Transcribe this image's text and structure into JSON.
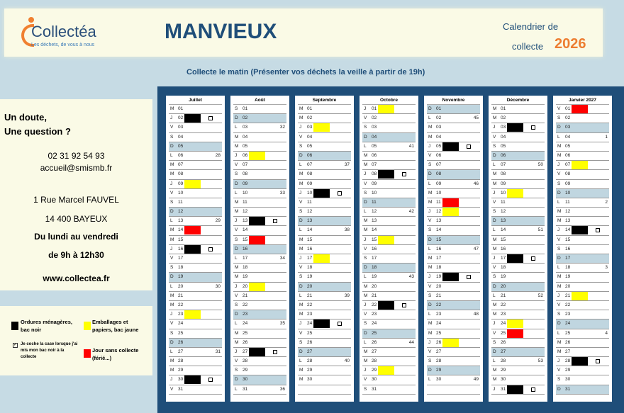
{
  "header": {
    "logo_name": "Collectéa",
    "logo_tagline": "Les déchets, de vous à nous",
    "town": "MANVIEUX",
    "calendar_line1": "Calendrier de",
    "calendar_line2": "collecte",
    "year": "2026",
    "subtitle": "Collecte le matin (Présenter vos déchets la veille à partir de 19h)"
  },
  "info": {
    "question1": "Un doute,",
    "question2": "Une question ?",
    "phone": "02 31 92 54 93",
    "email": "accueil@smismb.fr",
    "address1": "1 Rue Marcel FAUVEL",
    "address2": "14 400 BAYEUX",
    "days": "Du lundi au vendredi",
    "hours": "de 9h à 12h30",
    "website": "www.collectea.fr"
  },
  "legend": {
    "black": "Ordures ménagères, bac noir",
    "yellow": "Emballages et papiers, bac jaune",
    "check": "Je coche la case lorsque j'ai mis mon bac noir à la collecte",
    "red": "Jour sans collecte (férié...)"
  },
  "colors": {
    "black": "#000000",
    "yellow": "#ffff00",
    "red": "#ff0000",
    "sunday": "#c0d6e0",
    "board": "#1f4e79",
    "accent": "#ed7d31"
  },
  "months": [
    {
      "name": "Juillet",
      "days": "MJVSDLMMJVSDLMMJVSDLMMJVSDLMMJV",
      "weeks": {
        "6": 28,
        "13": 29,
        "20": 30,
        "27": 31
      },
      "marks": {
        "2": "black",
        "9": "yellow",
        "14": "red",
        "16": "black",
        "23": "yellow",
        "30": "black"
      }
    },
    {
      "name": "Août",
      "days": "SDLMMJVSDLMMJVSDLMMJVSDLMMJVSDL",
      "weeks": {
        "3": 32,
        "10": 33,
        "17": 34,
        "24": 35,
        "31": 36
      },
      "marks": {
        "6": "yellow",
        "13": "black",
        "15": "red",
        "20": "yellow",
        "27": "black"
      }
    },
    {
      "name": "Septembre",
      "days": "MMJVSDLMMJVSDLMMJVSDLMMJVSDLMM",
      "weeks": {
        "7": 37,
        "14": 38,
        "21": 39,
        "28": 40
      },
      "marks": {
        "3": "yellow",
        "10": "black",
        "17": "yellow",
        "24": "black"
      }
    },
    {
      "name": "Octobre",
      "days": "JVSDLMMJVSDLMMJVSDLMMJVSDLMMJVS",
      "weeks": {
        "5": 41,
        "12": 42,
        "19": 43,
        "26": 44
      },
      "marks": {
        "1": "yellow",
        "8": "black",
        "15": "yellow",
        "22": "black",
        "29": "yellow"
      }
    },
    {
      "name": "Novembre",
      "days": "DLMMJVSDLMMJVSDLMMJVSDLMMJVSDL",
      "weeks": {
        "2": 45,
        "9": 46,
        "16": 47,
        "23": 48,
        "30": 49
      },
      "marks": {
        "5": "black",
        "11": "red",
        "12": "yellow",
        "19": "black",
        "26": "yellow"
      }
    },
    {
      "name": "Décembre",
      "days": "MMJVSDLMMJVSDLMMJVSDLMMJVSDLMMJ",
      "weeks": {
        "7": 50,
        "14": 51,
        "21": 52,
        "28": 53
      },
      "marks": {
        "3": "black",
        "10": "yellow",
        "17": "black",
        "24": "yellow",
        "25": "red",
        "31": "black"
      }
    },
    {
      "name": "Janvier 2027",
      "days": "VSDLMMJVSDLMMJVSDLMMJVSDLMMJVSD",
      "weeks": {
        "4": 1,
        "11": 2,
        "18": 3,
        "25": 4
      },
      "marks": {
        "1": "red",
        "7": "yellow",
        "14": "black",
        "21": "yellow",
        "28": "black"
      }
    }
  ]
}
